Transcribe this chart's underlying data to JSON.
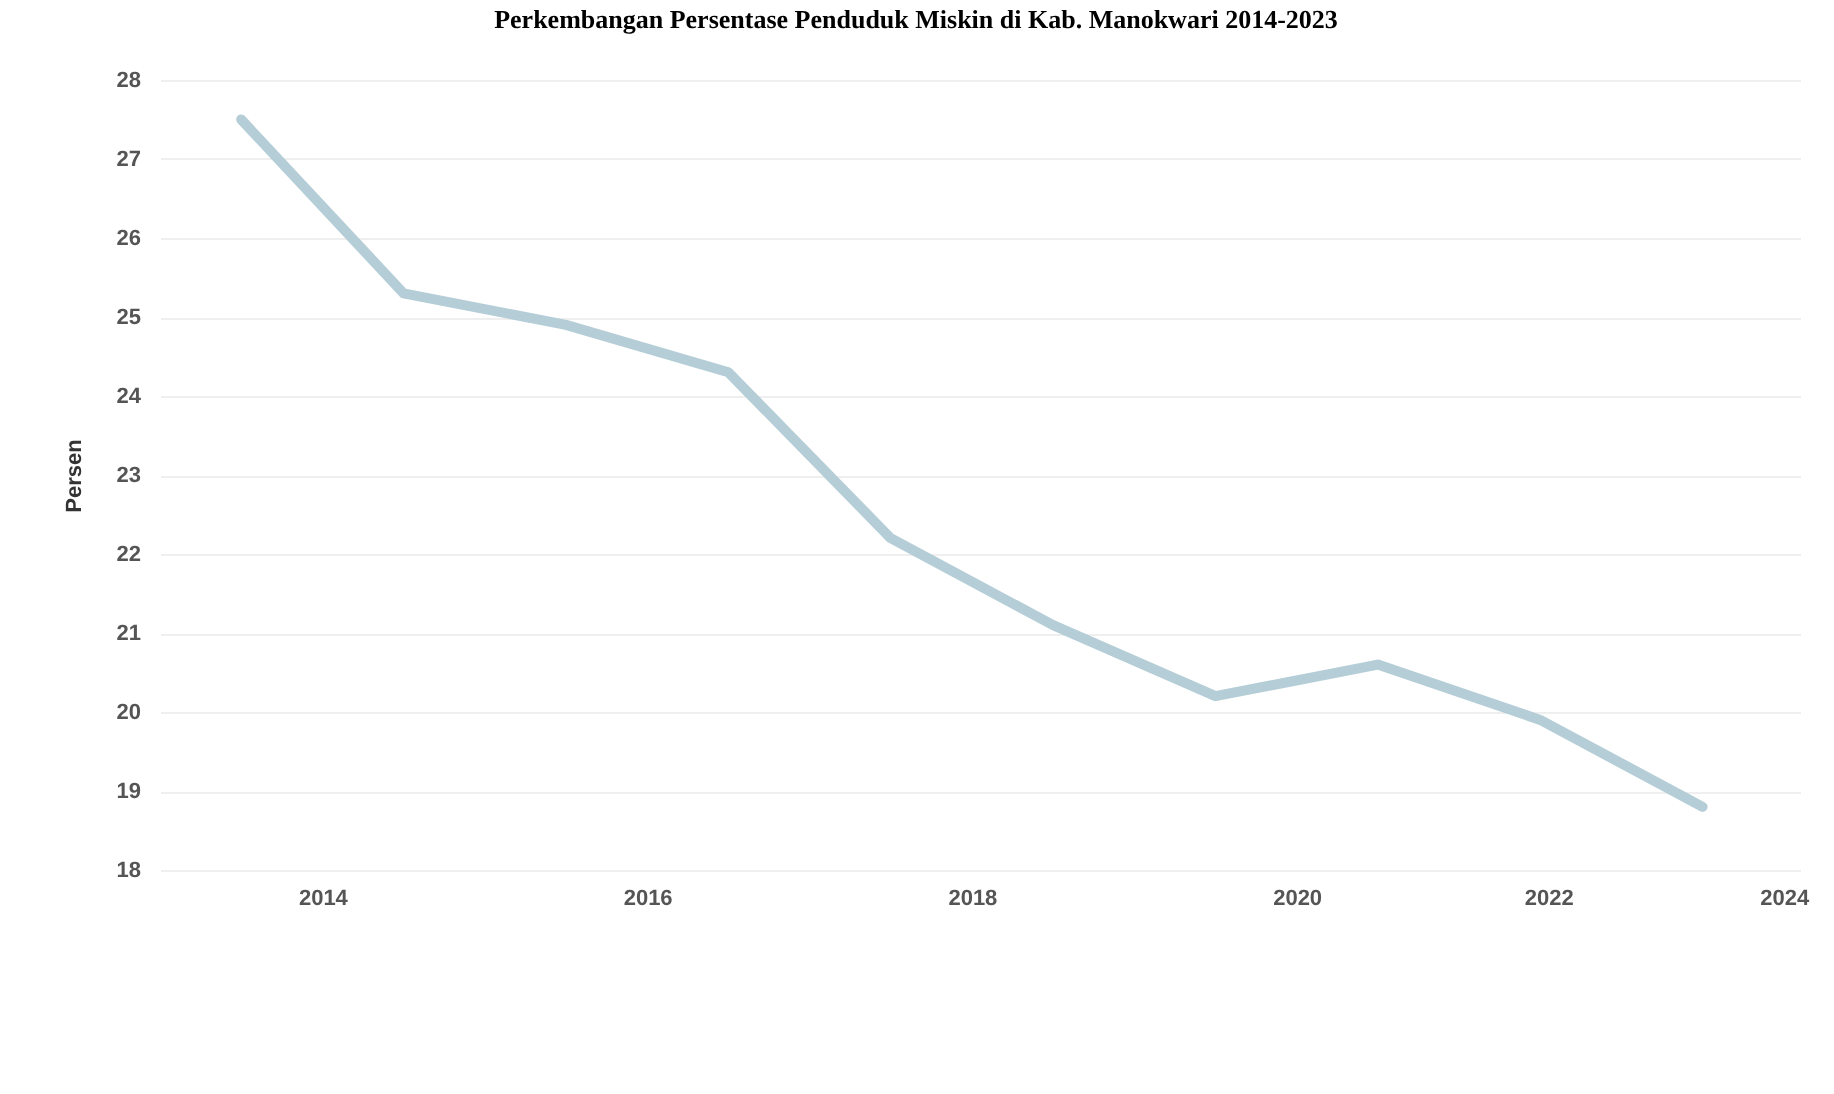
{
  "chart_data": {
    "type": "line",
    "title": "Perkembangan Persentase Penduduk Miskin di Kab. Manokwari 2014-2023",
    "ylabel": "Persen",
    "x": [
      2014,
      2015,
      2016,
      2017,
      2018,
      2019,
      2020,
      2021,
      2022,
      2023
    ],
    "values": [
      27.5,
      25.3,
      24.9,
      24.3,
      22.2,
      21.1,
      20.2,
      20.6,
      19.9,
      18.8
    ],
    "color": "#b4cdd6",
    "xlim": [
      2013.5,
      2023.6
    ],
    "xticks": [
      {
        "value": 2014.5,
        "label": "2014"
      },
      {
        "value": 2016.5,
        "label": "2016"
      },
      {
        "value": 2018.5,
        "label": "2018"
      },
      {
        "value": 2020.5,
        "label": "2020"
      },
      {
        "value": 2022.05,
        "label": "2022"
      },
      {
        "value": 2023.5,
        "label": "2024"
      }
    ],
    "ylim": [
      18,
      28
    ],
    "yticks": [
      18,
      19,
      20,
      21,
      22,
      23,
      24,
      25,
      26,
      27,
      28
    ],
    "grid": "y"
  }
}
